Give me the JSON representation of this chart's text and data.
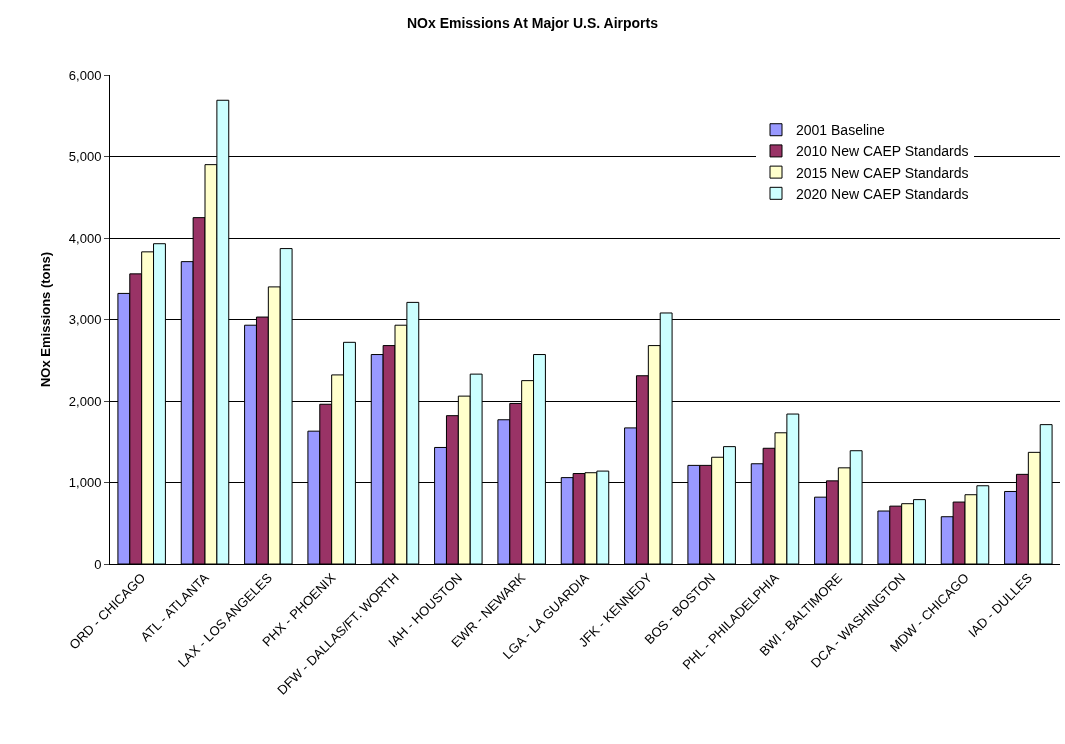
{
  "chart_data": {
    "type": "bar",
    "title": "NOx Emissions At Major U.S. Airports",
    "ylabel": "NOx Emissions (tons)",
    "categories": [
      "ORD - CHICAGO",
      "ATL - ATLANTA",
      "LAX - LOS ANGELES",
      "PHX - PHOENIX",
      "DFW - DALLAS/FT. WORTH",
      "IAH - HOUSTON",
      "EWR - NEWARK",
      "LGA - LA GUARDIA",
      "JFK - KENNEDY",
      "BOS - BOSTON",
      "PHL - PHILADELPHIA",
      "BWI - BALTIMORE",
      "DCA - WASHINGTON",
      "MDW - CHICAGO",
      "IAD - DULLES"
    ],
    "series": [
      {
        "name": "2001 Baseline",
        "color": "#9999ff",
        "values": [
          3320,
          3710,
          2930,
          1630,
          2570,
          1430,
          1770,
          1060,
          1670,
          1210,
          1230,
          820,
          650,
          580,
          890
        ]
      },
      {
        "name": "2010 New CAEP Standards",
        "color": "#993366",
        "values": [
          3560,
          4250,
          3030,
          1960,
          2680,
          1820,
          1970,
          1110,
          2310,
          1210,
          1420,
          1020,
          710,
          760,
          1100
        ]
      },
      {
        "name": "2015 New CAEP Standards",
        "color": "#ffffcc",
        "values": [
          3830,
          4900,
          3400,
          2320,
          2930,
          2060,
          2250,
          1120,
          2680,
          1310,
          1610,
          1180,
          740,
          850,
          1370
        ]
      },
      {
        "name": "2020 New CAEP Standards",
        "color": "#ccffff",
        "values": [
          3930,
          5690,
          3870,
          2720,
          3210,
          2330,
          2570,
          1140,
          3080,
          1440,
          1840,
          1390,
          790,
          960,
          1710
        ]
      }
    ],
    "ylim": [
      0,
      6000
    ],
    "yticks": [
      {
        "value": 0,
        "label": "0"
      },
      {
        "value": 1000,
        "label": "1,000"
      },
      {
        "value": 2000,
        "label": "2,000"
      },
      {
        "value": 3000,
        "label": "3,000"
      },
      {
        "value": 4000,
        "label": "4,000"
      },
      {
        "value": 5000,
        "label": "5,000"
      },
      {
        "value": 6000,
        "label": "6,000"
      }
    ],
    "grid": "y",
    "legend": "top right"
  }
}
